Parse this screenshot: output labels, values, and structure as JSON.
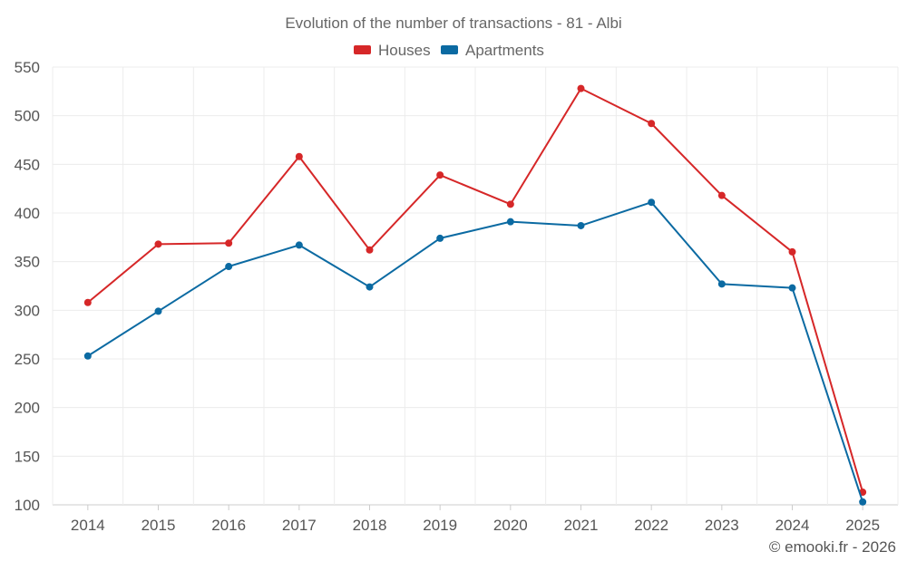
{
  "chart_data": {
    "type": "line",
    "title": "Evolution of the number of transactions - 81 - Albi",
    "categories": [
      "2014",
      "2015",
      "2016",
      "2017",
      "2018",
      "2019",
      "2020",
      "2021",
      "2022",
      "2023",
      "2024",
      "2025"
    ],
    "series": [
      {
        "name": "Houses",
        "color": "#d62728",
        "values": [
          308,
          368,
          369,
          458,
          362,
          439,
          409,
          528,
          492,
          418,
          360,
          113
        ]
      },
      {
        "name": "Apartments",
        "color": "#0b6aa2",
        "values": [
          253,
          299,
          345,
          367,
          324,
          374,
          391,
          387,
          411,
          327,
          323,
          103
        ]
      }
    ],
    "yticks": [
      100,
      150,
      200,
      250,
      300,
      350,
      400,
      450,
      500,
      550
    ],
    "ylim": [
      100,
      550
    ],
    "xlabel": "",
    "ylabel": "",
    "grid": true,
    "legend_position": "top-center"
  },
  "credit": "© emooki.fr - 2026"
}
